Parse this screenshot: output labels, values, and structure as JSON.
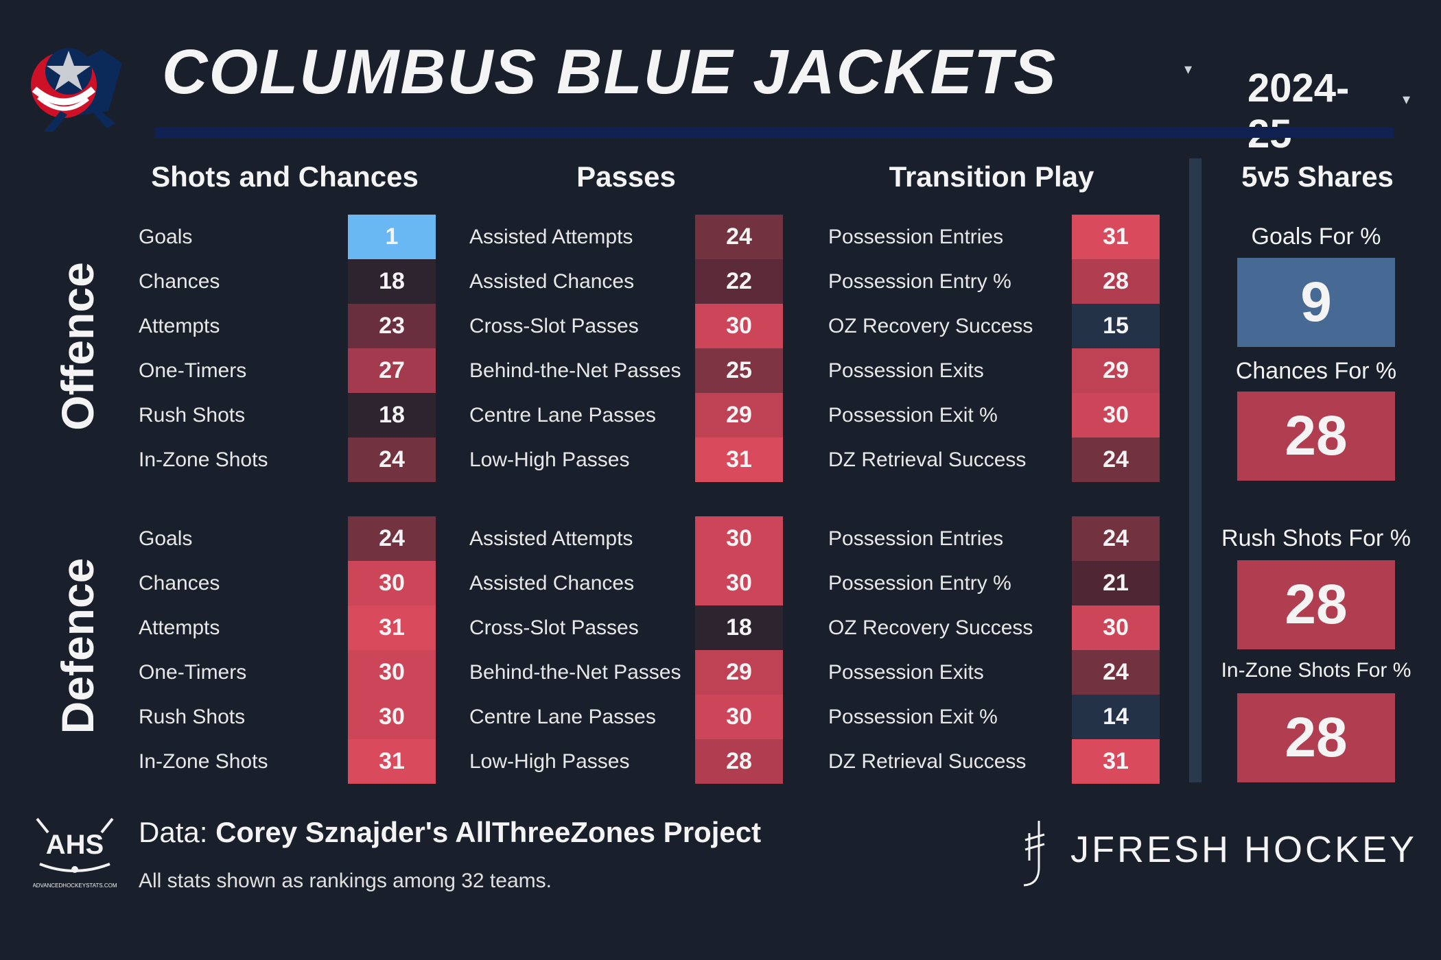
{
  "header": {
    "team_name": "COLUMBUS BLUE JACKETS",
    "season": "2024-25",
    "dropdown_caret": "▾"
  },
  "columns": {
    "shots": "Shots and Chances",
    "passes": "Passes",
    "transition": "Transition Play",
    "shares": "5v5 Shares"
  },
  "sections": {
    "offence": "Offence",
    "defence": "Defence"
  },
  "offence": {
    "shots": [
      {
        "label": "Goals",
        "rank": "1",
        "color": "#6ab8f3"
      },
      {
        "label": "Chances",
        "rank": "18",
        "color": "#2e2430"
      },
      {
        "label": "Attempts",
        "rank": "23",
        "color": "#6a2f3e"
      },
      {
        "label": "One-Timers",
        "rank": "27",
        "color": "#a33a4d"
      },
      {
        "label": "Rush Shots",
        "rank": "18",
        "color": "#2e2430"
      },
      {
        "label": "In-Zone Shots",
        "rank": "24",
        "color": "#733240"
      }
    ],
    "passes": [
      {
        "label": "Assisted Attempts",
        "rank": "24",
        "color": "#733240"
      },
      {
        "label": "Assisted Chances",
        "rank": "22",
        "color": "#5c2a38"
      },
      {
        "label": "Cross-Slot Passes",
        "rank": "30",
        "color": "#cc4558"
      },
      {
        "label": "Behind-the-Net Passes",
        "rank": "25",
        "color": "#7f3443"
      },
      {
        "label": "Centre Lane Passes",
        "rank": "29",
        "color": "#bf4254"
      },
      {
        "label": "Low-High Passes",
        "rank": "31",
        "color": "#d94a5d"
      }
    ],
    "transition": [
      {
        "label": "Possession Entries",
        "rank": "31",
        "color": "#d94a5d"
      },
      {
        "label": "Possession Entry %",
        "rank": "28",
        "color": "#b03e50"
      },
      {
        "label": "OZ Recovery Success",
        "rank": "15",
        "color": "#243247"
      },
      {
        "label": "Possession Exits",
        "rank": "29",
        "color": "#bf4254"
      },
      {
        "label": "Possession Exit %",
        "rank": "30",
        "color": "#cc4558"
      },
      {
        "label": "DZ Retrieval Success",
        "rank": "24",
        "color": "#733240"
      }
    ]
  },
  "defence": {
    "shots": [
      {
        "label": "Goals",
        "rank": "24",
        "color": "#733240"
      },
      {
        "label": "Chances",
        "rank": "30",
        "color": "#cc4558"
      },
      {
        "label": "Attempts",
        "rank": "31",
        "color": "#d94a5d"
      },
      {
        "label": "One-Timers",
        "rank": "30",
        "color": "#cc4558"
      },
      {
        "label": "Rush Shots",
        "rank": "30",
        "color": "#cc4558"
      },
      {
        "label": "In-Zone Shots",
        "rank": "31",
        "color": "#d94a5d"
      }
    ],
    "passes": [
      {
        "label": "Assisted Attempts",
        "rank": "30",
        "color": "#cc4558"
      },
      {
        "label": "Assisted Chances",
        "rank": "30",
        "color": "#cc4558"
      },
      {
        "label": "Cross-Slot Passes",
        "rank": "18",
        "color": "#2e2430"
      },
      {
        "label": "Behind-the-Net Passes",
        "rank": "29",
        "color": "#bf4254"
      },
      {
        "label": "Centre Lane Passes",
        "rank": "30",
        "color": "#cc4558"
      },
      {
        "label": "Low-High Passes",
        "rank": "28",
        "color": "#b03e50"
      }
    ],
    "transition": [
      {
        "label": "Possession Entries",
        "rank": "24",
        "color": "#733240"
      },
      {
        "label": "Possession Entry %",
        "rank": "21",
        "color": "#4f2734"
      },
      {
        "label": "OZ Recovery Success",
        "rank": "30",
        "color": "#cc4558"
      },
      {
        "label": "Possession Exits",
        "rank": "24",
        "color": "#733240"
      },
      {
        "label": "Possession Exit %",
        "rank": "14",
        "color": "#243247"
      },
      {
        "label": "DZ Retrieval Success",
        "rank": "31",
        "color": "#d94a5d"
      }
    ]
  },
  "shares": [
    {
      "label": "Goals For %",
      "rank": "9",
      "color": "#466a93"
    },
    {
      "label": "Chances For %",
      "rank": "28",
      "color": "#b03e50"
    },
    {
      "label": "Rush Shots For %",
      "rank": "28",
      "color": "#b03e50"
    },
    {
      "label": "In-Zone Shots For %",
      "rank": "28",
      "color": "#b03e50"
    }
  ],
  "footer": {
    "data_prefix": "Data: ",
    "data_source": "Corey Sznajder's AllThreeZones Project",
    "note": "All stats shown as rankings among 32 teams.",
    "brand": "JFRESH HOCKEY",
    "ahs_logo_text": "AHS",
    "ahs_site": "ADVANCEDHOCKEYSTATS.COM"
  },
  "icons": {
    "team_logo": "blue-jackets-logo-icon",
    "ahs_logo": "ahs-logo-icon",
    "brand_mark": "jfresh-mark-icon"
  }
}
